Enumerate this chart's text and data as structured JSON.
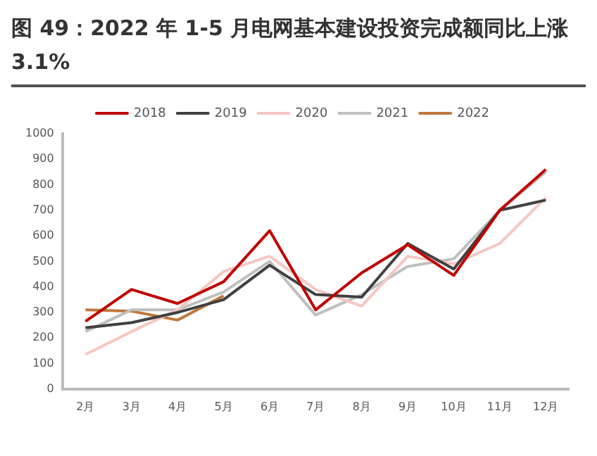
{
  "chart_data": {
    "type": "line",
    "title": "图 49：2022 年 1-5 月电网基本建设投资完成额同比上涨 3.1%",
    "categories": [
      "2月",
      "3月",
      "4月",
      "5月",
      "6月",
      "7月",
      "8月",
      "9月",
      "10月",
      "11月",
      "12月"
    ],
    "series": [
      {
        "name": "2018",
        "color": "#c00000",
        "values": [
          265,
          390,
          335,
          420,
          620,
          310,
          455,
          565,
          445,
          700,
          860
        ]
      },
      {
        "name": "2019",
        "color": "#404040",
        "values": [
          240,
          260,
          300,
          350,
          485,
          370,
          360,
          570,
          470,
          700,
          740
        ]
      },
      {
        "name": "2020",
        "color": "#f4c7c3",
        "values": [
          135,
          225,
          310,
          460,
          520,
          390,
          325,
          520,
          490,
          570,
          750
        ]
      },
      {
        "name": "2021",
        "color": "#bfbfbf",
        "values": [
          225,
          310,
          310,
          380,
          500,
          290,
          370,
          480,
          510,
          700,
          850
        ]
      },
      {
        "name": "2022",
        "color": "#c0763a",
        "values": [
          310,
          305,
          270,
          365,
          null,
          null,
          null,
          null,
          null,
          null,
          null
        ]
      }
    ],
    "ylim": [
      0,
      1000
    ],
    "yticks": [
      0,
      100,
      200,
      300,
      400,
      500,
      600,
      700,
      800,
      900,
      1000
    ],
    "grid": false,
    "legend": "top",
    "marker": "none",
    "line_style": "solid"
  }
}
